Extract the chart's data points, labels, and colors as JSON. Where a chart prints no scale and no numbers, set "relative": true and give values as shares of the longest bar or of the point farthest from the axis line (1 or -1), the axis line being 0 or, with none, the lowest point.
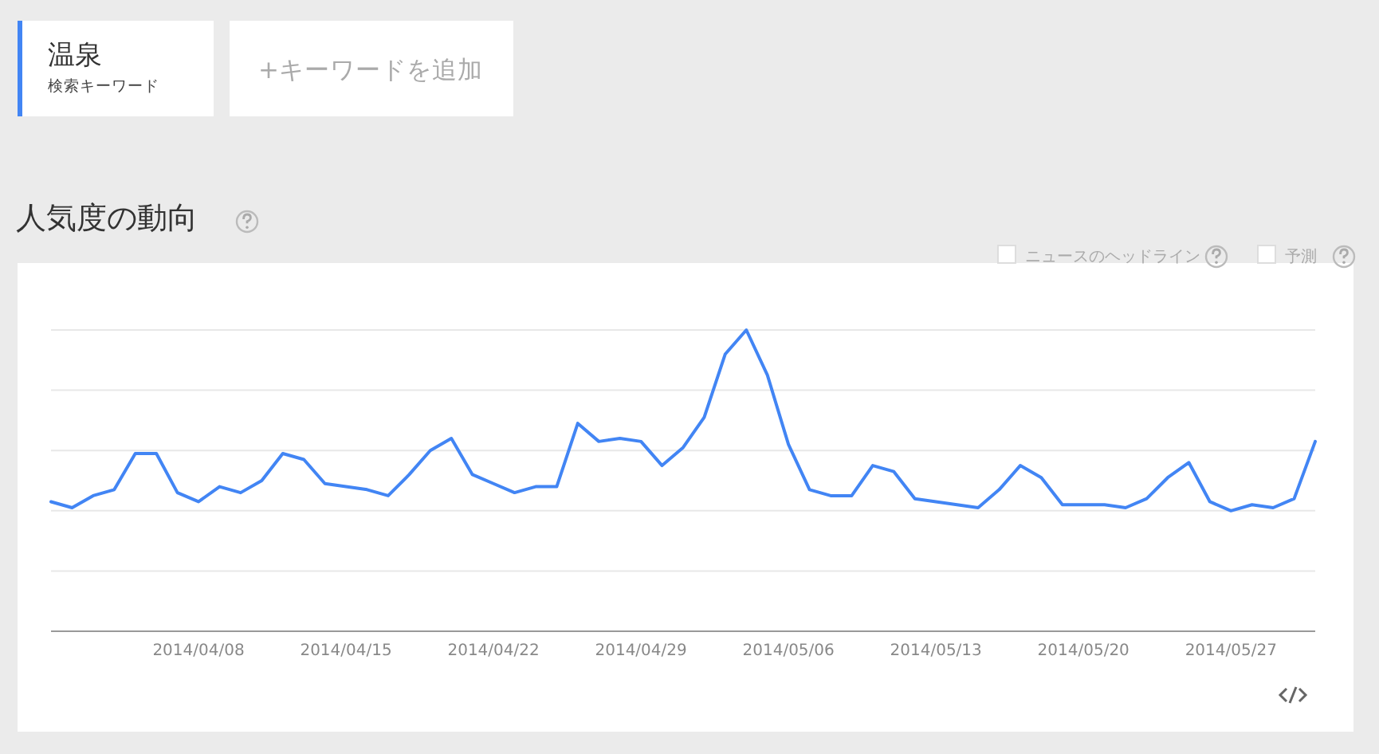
{
  "chart_data": {
    "type": "line",
    "title": "人気度の動向",
    "relative": true,
    "grid": "y",
    "legend": "top left",
    "marker": "none",
    "line_style": "solid",
    "annotations": [
      "検索キーワード",
      "+キーワードを追加",
      "ニュースのヘッドライン",
      "予測"
    ],
    "xlim": [
      "2014-04-01",
      "2014-05-31"
    ],
    "xticks": [
      {
        "value": "2014-04-08",
        "label": "2014/04/08"
      },
      {
        "value": "2014-04-15",
        "label": "2014/04/15"
      },
      {
        "value": "2014-04-22",
        "label": "2014/04/22"
      },
      {
        "value": "2014-04-29",
        "label": "2014/04/29"
      },
      {
        "value": "2014-05-06",
        "label": "2014/05/06"
      },
      {
        "value": "2014-05-13",
        "label": "2014/05/13"
      },
      {
        "value": "2014-05-20",
        "label": "2014/05/20"
      },
      {
        "value": "2014-05-27",
        "label": "2014/05/27"
      }
    ],
    "x": [
      "2014-04-01",
      "2014-04-02",
      "2014-04-03",
      "2014-04-04",
      "2014-04-05",
      "2014-04-06",
      "2014-04-07",
      "2014-04-08",
      "2014-04-09",
      "2014-04-10",
      "2014-04-11",
      "2014-04-12",
      "2014-04-13",
      "2014-04-14",
      "2014-04-15",
      "2014-04-16",
      "2014-04-17",
      "2014-04-18",
      "2014-04-19",
      "2014-04-20",
      "2014-04-21",
      "2014-04-22",
      "2014-04-23",
      "2014-04-24",
      "2014-04-25",
      "2014-04-26",
      "2014-04-27",
      "2014-04-28",
      "2014-04-29",
      "2014-04-30",
      "2014-05-01",
      "2014-05-02",
      "2014-05-03",
      "2014-05-04",
      "2014-05-05",
      "2014-05-06",
      "2014-05-07",
      "2014-05-08",
      "2014-05-09",
      "2014-05-10",
      "2014-05-11",
      "2014-05-12",
      "2014-05-13",
      "2014-05-14",
      "2014-05-15",
      "2014-05-16",
      "2014-05-17",
      "2014-05-18",
      "2014-05-19",
      "2014-05-20",
      "2014-05-21",
      "2014-05-22",
      "2014-05-23",
      "2014-05-24",
      "2014-05-25",
      "2014-05-26",
      "2014-05-27",
      "2014-05-28",
      "2014-05-29",
      "2014-05-30",
      "2014-05-31"
    ],
    "series": [
      {
        "name": "温泉",
        "color": "#4285f4",
        "values": [
          0.43,
          0.41,
          0.45,
          0.47,
          0.59,
          0.59,
          0.46,
          0.43,
          0.48,
          0.46,
          0.5,
          0.59,
          0.57,
          0.49,
          0.48,
          0.47,
          0.45,
          0.52,
          0.6,
          0.64,
          0.52,
          0.49,
          0.46,
          0.48,
          0.48,
          0.69,
          0.63,
          0.64,
          0.63,
          0.55,
          0.61,
          0.71,
          0.92,
          1.0,
          0.85,
          0.62,
          0.47,
          0.45,
          0.45,
          0.55,
          0.53,
          0.44,
          0.43,
          0.42,
          0.41,
          0.47,
          0.55,
          0.51,
          0.42,
          0.42,
          0.42,
          0.41,
          0.44,
          0.51,
          0.56,
          0.43,
          0.4,
          0.42,
          0.41,
          0.44,
          0.63
        ]
      }
    ]
  }
}
